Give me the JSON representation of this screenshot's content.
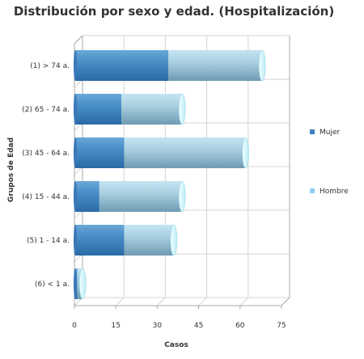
{
  "chart_data": {
    "type": "bar",
    "orientation": "horizontal",
    "stacked": true,
    "style": "3d-cylinder",
    "title": "Distribución por sexo y edad. (Hospitalización)",
    "xlabel": "Casos",
    "ylabel": "Grupos de Edad",
    "xlim": [
      0,
      75
    ],
    "xticks": [
      0,
      15,
      30,
      45,
      60,
      75
    ],
    "grid": true,
    "legend_position": "right",
    "categories": [
      "(1) > 74 a.",
      "(2) 65 - 74 a.",
      "(3) 45 - 64 a.",
      "(4) 15 - 44 a.",
      "(5) 1 - 14 a.",
      "(6) < 1 a."
    ],
    "series": [
      {
        "name": "Mujer",
        "values": [
          34,
          17,
          18,
          9,
          18,
          1
        ],
        "color": "#3d7fbf"
      },
      {
        "name": "Hombre",
        "values": [
          34,
          22,
          44,
          30,
          18,
          2
        ],
        "color": "#8fd0f0"
      }
    ]
  }
}
